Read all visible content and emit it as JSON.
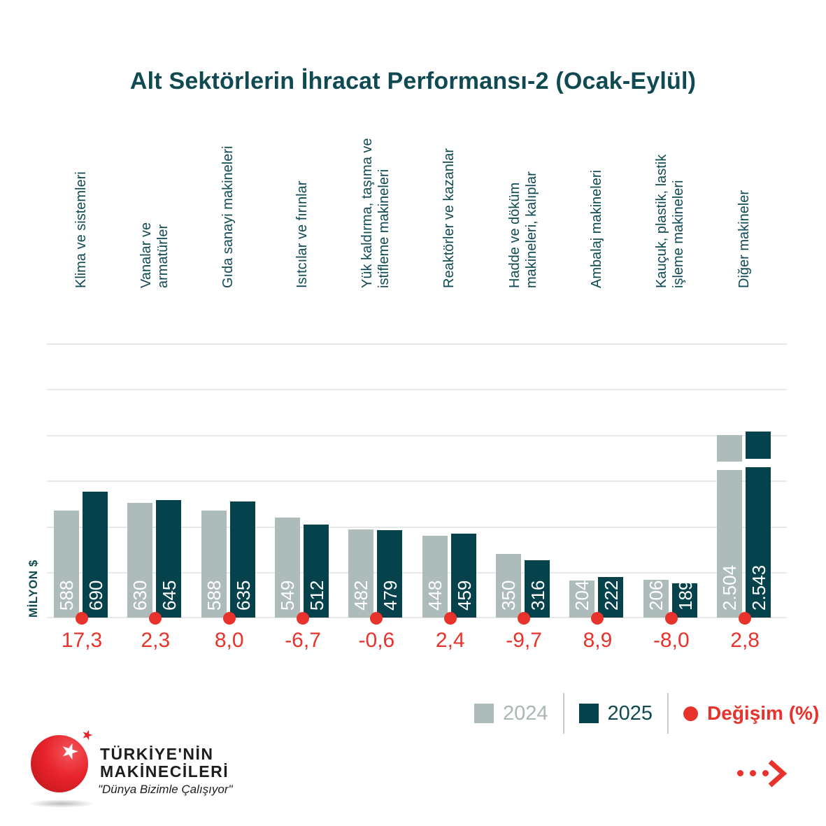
{
  "title": "Alt Sektörlerin İhracat Performansı-2 (Ocak-Eylül)",
  "y_axis_label": "MİLYON $",
  "chart_data": {
    "type": "bar",
    "title": "Alt Sektörlerin İhracat Performansı-2 (Ocak-Eylül)",
    "ylabel": "MİLYON $",
    "ylim": [
      0,
      1500
    ],
    "grid_step": 250,
    "grid_on": true,
    "legend_position": "bottom-right",
    "axis_break_category_index": 9,
    "categories": [
      "Klima ve sistemleri",
      "Vanalar ve armatürler",
      "Gıda sanayi makineleri",
      "Isıtcılar ve fırınlar",
      "Yük kaldırma, taşıma ve istifleme makineleri",
      "Reaktörler ve kazanlar",
      "Hadde ve döküm makineleri, kalıplar",
      "Ambalaj makineleri",
      "Kauçuk, plastik, lastik işleme makineleri",
      "Diğer makineler"
    ],
    "category_label_lines": [
      [
        "Klima ve sistemleri"
      ],
      [
        "Vanalar ve",
        "armatürler"
      ],
      [
        "Gıda sanayi makineleri"
      ],
      [
        "Isıtcılar ve fırınlar"
      ],
      [
        "Yük kaldırma, taşıma ve",
        "istifleme makineleri"
      ],
      [
        "Reaktörler ve kazanlar"
      ],
      [
        "Hadde ve döküm",
        "makineleri, kalıplar"
      ],
      [
        "Ambalaj makineleri"
      ],
      [
        "Kauçuk, plastik, lastik",
        "işleme makineleri"
      ],
      [
        "Diğer makineler"
      ]
    ],
    "series": [
      {
        "name": "2024",
        "values": [
          588,
          630,
          588,
          549,
          482,
          448,
          350,
          204,
          206,
          2504
        ],
        "values_display": [
          "588",
          "630",
          "588",
          "549",
          "482",
          "448",
          "350",
          "204",
          "206",
          "2.504"
        ]
      },
      {
        "name": "2025",
        "values": [
          690,
          645,
          635,
          512,
          479,
          459,
          316,
          222,
          189,
          2543
        ],
        "values_display": [
          "690",
          "645",
          "635",
          "512",
          "479",
          "459",
          "316",
          "222",
          "189",
          "2.543"
        ]
      }
    ],
    "change_percent": [
      17.3,
      2.3,
      8.0,
      -6.7,
      -0.6,
      2.4,
      -9.7,
      8.9,
      -8.0,
      2.8
    ],
    "change_percent_display": [
      "17,3",
      "2,3",
      "8,0",
      "-6,7",
      "-0,6",
      "2,4",
      "-9,7",
      "8,9",
      "-8,0",
      "2,8"
    ]
  },
  "legend": {
    "s2024": "2024",
    "s2025": "2025",
    "change": "Değişim (%)"
  },
  "footer": {
    "brand_line1": "TÜRKİYE'NİN",
    "brand_line2": "MAKİNECİLERİ",
    "slogan": "\"Dünya Bizimle Çalışıyor\"",
    "star_icon": "★"
  },
  "colors": {
    "bar_2024": "#adbbba",
    "bar_2025": "#05424b",
    "accent_red": "#e8322c",
    "teal_text": "#0f4a53",
    "gridline": "#e8e8e8"
  }
}
